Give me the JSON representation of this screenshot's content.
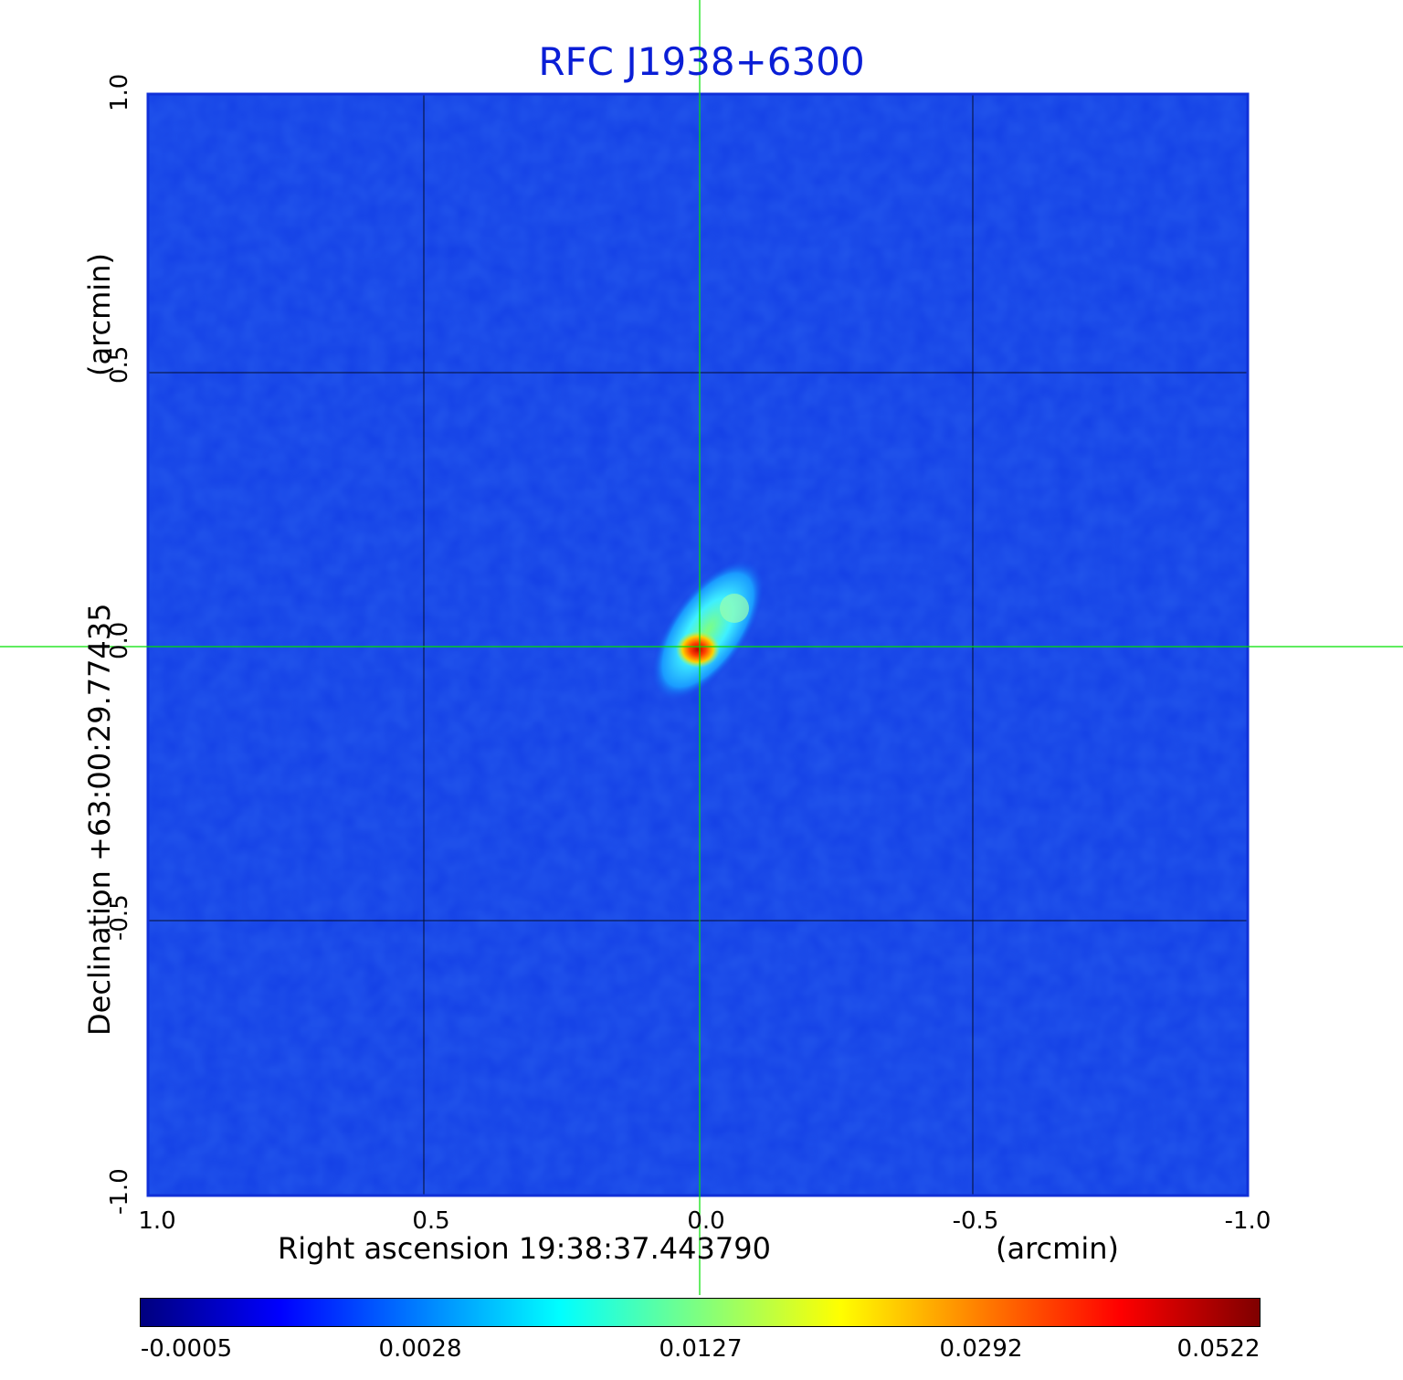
{
  "title": "RFC J1938+6300",
  "x_axis": {
    "label": "Right ascension  19:38:37.443790",
    "unit": "(arcmin)",
    "ticks": [
      "1.0",
      "0.5",
      "0.0",
      "-0.5",
      "-1.0"
    ],
    "range": [
      1.0,
      -1.0
    ]
  },
  "y_axis": {
    "label": "Declination  +63:00:29.77435",
    "unit": "(arcmin)",
    "ticks": [
      "-1.0",
      "-0.5",
      "0.0",
      "0.5",
      "1.0"
    ],
    "range": [
      -1.0,
      1.0
    ]
  },
  "colorbar": {
    "ticks": [
      "-0.0005",
      "0.0028",
      "0.0127",
      "0.0292",
      "0.0522"
    ],
    "colormap": [
      "#00007f",
      "#0000ff",
      "#007fff",
      "#00ffff",
      "#7fff7f",
      "#ffff00",
      "#ff7f00",
      "#ff0000",
      "#7f0000"
    ]
  },
  "colors": {
    "title": "#0a1ed6",
    "background_map": "#1440e6",
    "crosshair": "#00e000",
    "grid": "#000000"
  },
  "source": {
    "center": [
      0.0,
      0.0
    ],
    "peak_color": "#d01010",
    "secondary_component_offset": [
      -0.07,
      0.07
    ]
  },
  "grid": true
}
